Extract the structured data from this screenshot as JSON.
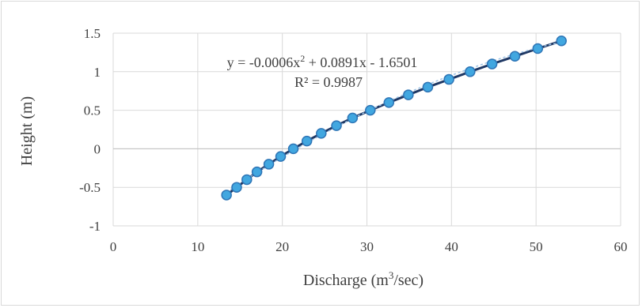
{
  "chart_data": {
    "type": "scatter",
    "xlabel": "Discharge (m3/sec)",
    "xlabel_parts": {
      "pre": "Discharge (m",
      "sup": "3",
      "post": "/sec)"
    },
    "ylabel": "Height (m)",
    "xlim": [
      0,
      60
    ],
    "ylim": [
      -1,
      1.5
    ],
    "x_ticks": [
      0,
      10,
      20,
      30,
      40,
      50,
      60
    ],
    "y_ticks": [
      -1,
      -0.5,
      0,
      0.5,
      1,
      1.5
    ],
    "x_tick_labels": [
      "0",
      "10",
      "20",
      "30",
      "40",
      "50",
      "60"
    ],
    "y_tick_labels": [
      "-1",
      "-0.5",
      "0",
      "0.5",
      "1",
      "1.5"
    ],
    "grid": true,
    "legend": "none",
    "series": [
      {
        "marker_color": "#41a7e0",
        "marker_edge": "#2e75b6",
        "x": [
          13.4,
          14.6,
          15.8,
          17.0,
          18.4,
          19.8,
          21.3,
          22.9,
          24.6,
          26.4,
          28.3,
          30.4,
          32.6,
          34.9,
          37.2,
          39.7,
          42.2,
          44.8,
          47.5,
          50.2,
          53.0
        ],
        "y": [
          -0.6,
          -0.5,
          -0.4,
          -0.3,
          -0.2,
          -0.1,
          0.0,
          0.1,
          0.2,
          0.3,
          0.4,
          0.5,
          0.6,
          0.7,
          0.8,
          0.9,
          1.0,
          1.1,
          1.2,
          1.3,
          1.4
        ]
      }
    ],
    "trendline": {
      "type": "polynomial",
      "coefficients": [
        -0.0006,
        0.0891,
        -1.6501
      ],
      "color": "#1f3864",
      "style": "dashed",
      "equation_parts": {
        "pre": "y = -0.0006x",
        "sup": "2",
        "post": " + 0.0891x - 1.6501"
      },
      "r_squared_label": "R² = 0.9987"
    }
  }
}
